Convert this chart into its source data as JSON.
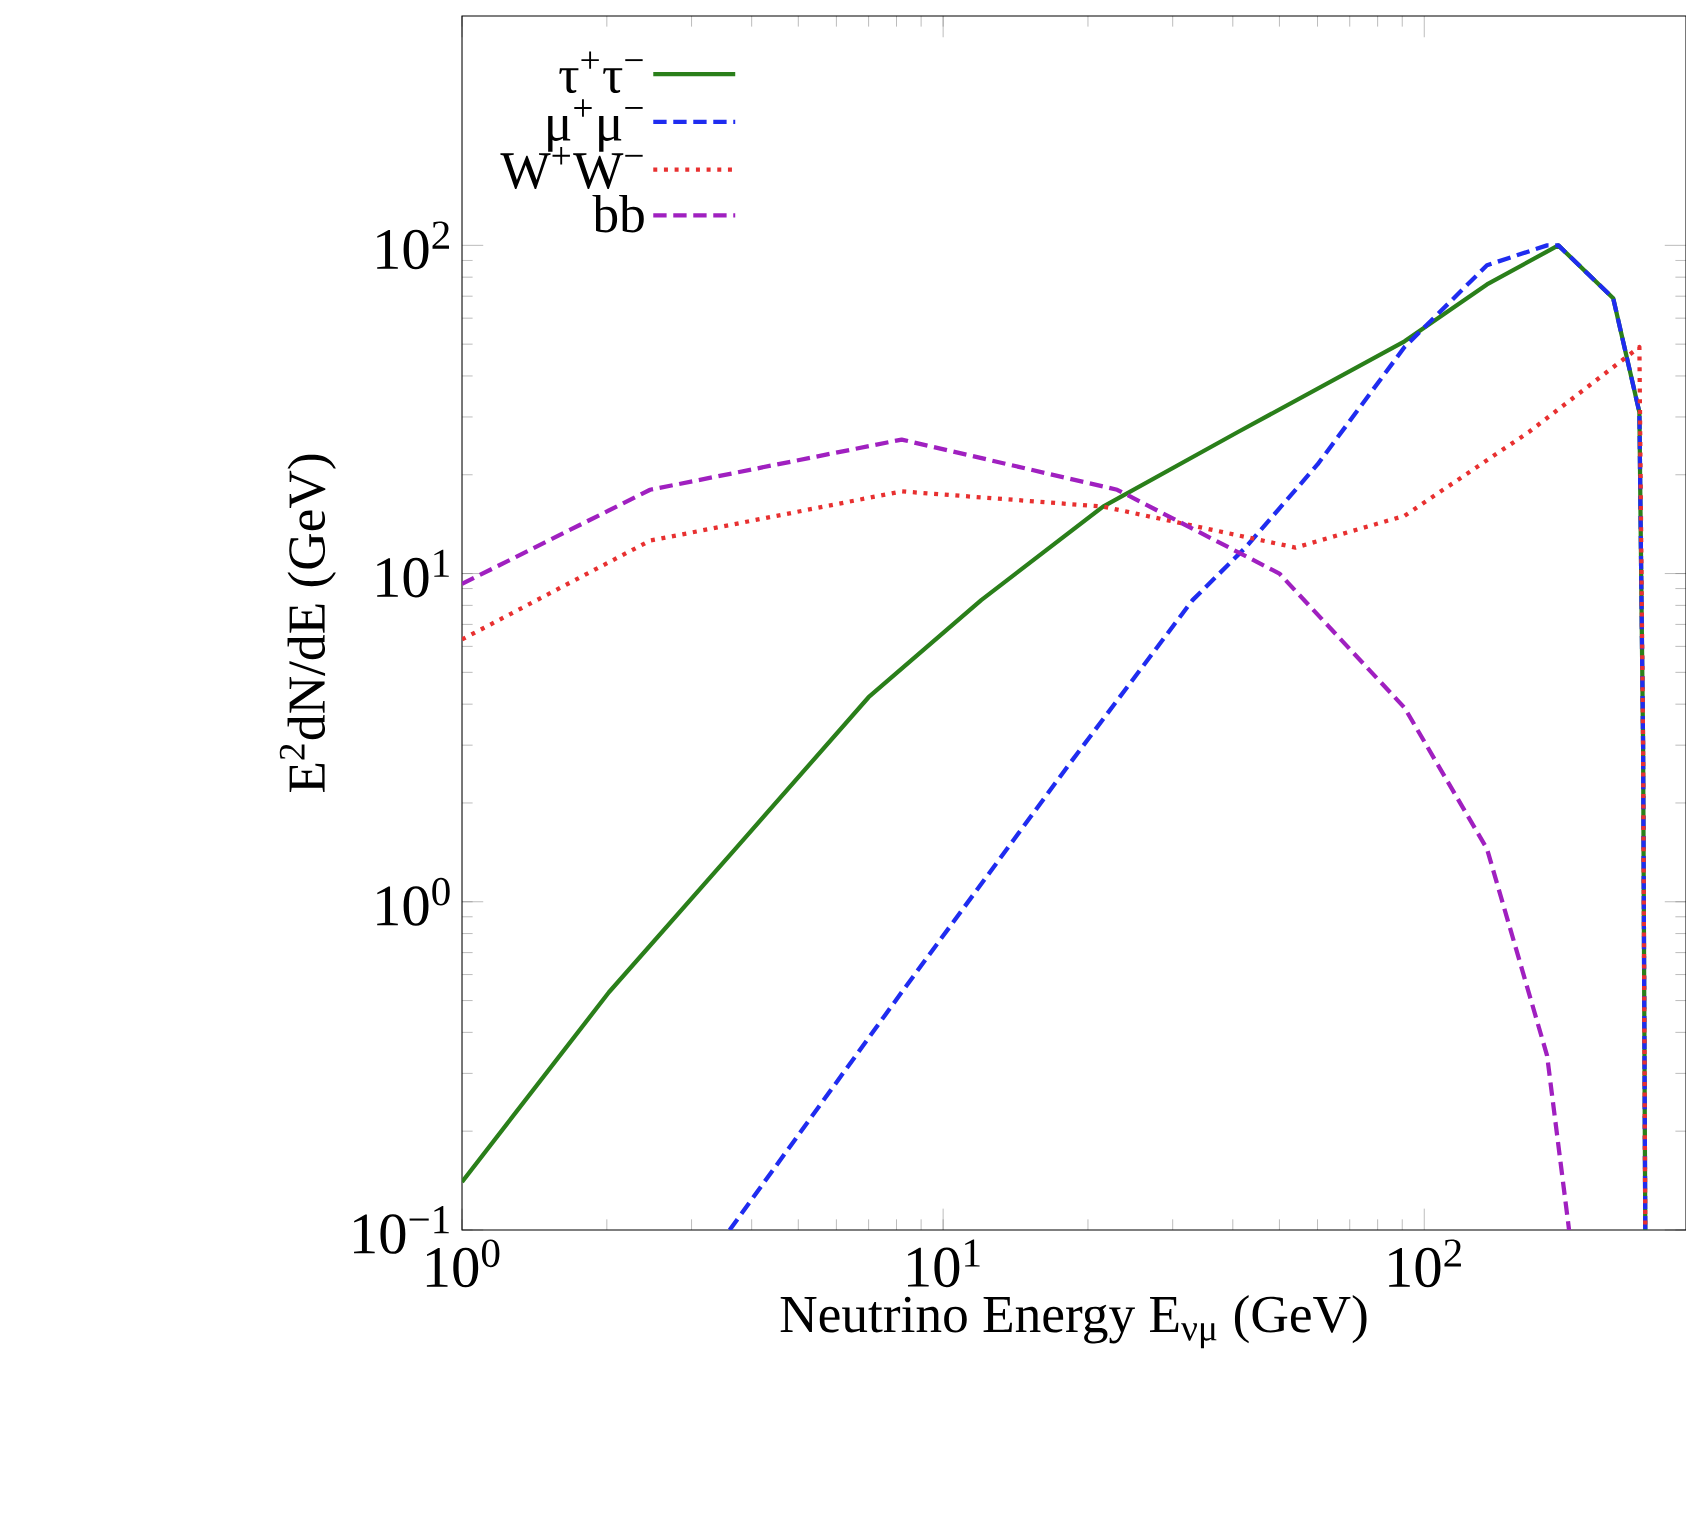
{
  "chart_data": {
    "type": "line",
    "log": "xy",
    "xlabel": "Neutrino Energy E$_{νμ}$ (GeV)",
    "ylabel": "E$^{2}$dN/dE (GeV)",
    "xlim": [
      1,
      350
    ],
    "ylim": [
      0.1,
      500
    ],
    "xticks": [
      {
        "value": 1,
        "label": "10$^{0}$"
      },
      {
        "value": 10,
        "label": "10$^{1}$"
      },
      {
        "value": 100,
        "label": "10$^{2}$"
      }
    ],
    "yticks": [
      {
        "value": 0.1,
        "label": "10$^{−1}$"
      },
      {
        "value": 1,
        "label": "10$^{0}$"
      },
      {
        "value": 10,
        "label": "10$^{1}$"
      },
      {
        "value": 100,
        "label": "10$^{2}$"
      }
    ],
    "legend": "top left",
    "series": [
      {
        "name": "τ$^{+}$τ$^{−}$",
        "color": "#2a7f1a",
        "line_style": "solid",
        "x": [
          1,
          2.02,
          3.7,
          7.0,
          12,
          21.5,
          41,
          91,
          135,
          190,
          247,
          280,
          285,
          288
        ],
        "values": [
          0.14,
          0.53,
          1.45,
          4.2,
          8.3,
          16,
          27,
          51,
          76,
          100,
          69,
          31,
          3,
          0.1
        ]
      },
      {
        "name": "μ$^{+}$μ$^{−}$",
        "color": "#1f2cf0",
        "line_style": "dashed",
        "x": [
          3.6,
          8.2,
          18.2,
          33,
          42.5,
          60,
          91,
          135,
          180,
          190,
          247,
          280,
          285,
          288
        ],
        "values": [
          0.1,
          0.53,
          2.6,
          8.3,
          12,
          21.5,
          49,
          87,
          100,
          100,
          69,
          31,
          3,
          0.1
        ]
      },
      {
        "name": "W$^{+}$W$^{−}$",
        "color": "#e83030",
        "line_style": "dotted",
        "x": [
          1,
          2.46,
          8.2,
          21.5,
          54,
          91,
          165,
          280,
          285,
          288
        ],
        "values": [
          6.3,
          12.6,
          17.8,
          16,
          12,
          15,
          27,
          49,
          3,
          0.1
        ]
      },
      {
        "name": "bb",
        "color": "#a020c0",
        "line_style": "dashed",
        "x": [
          1,
          2.46,
          8.2,
          23,
          50,
          91,
          135,
          180,
          200
        ],
        "values": [
          9.3,
          18,
          25.6,
          18,
          10,
          3.9,
          1.45,
          0.34,
          0.1
        ]
      }
    ]
  }
}
